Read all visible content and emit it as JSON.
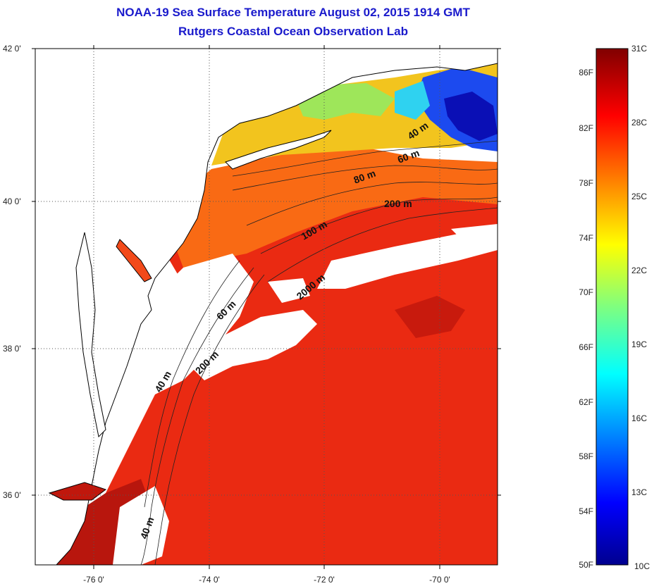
{
  "title": {
    "line1": "NOAA-19 Sea Surface Temperature August 02, 2015 1914 GMT",
    "line2": "Rutgers Coastal Ocean Observation Lab"
  },
  "map": {
    "lat_ticks": [
      "42 0'",
      "40 0'",
      "38 0'",
      "36 0'"
    ],
    "lon_ticks": [
      "-76 0'",
      "-74 0'",
      "-72 0'",
      "-70 0'"
    ],
    "depth_labels": [
      "40 m",
      "60 m",
      "80 m",
      "200 m",
      "100 m",
      "2000 m",
      "60 m",
      "200 m",
      "40 m",
      "40 m"
    ],
    "colors": {
      "land": "#ffffff",
      "coast": "#000000",
      "grid": "#555555",
      "title": "#1a1acc"
    }
  },
  "colorbar": {
    "fahrenheit": [
      "86F",
      "82F",
      "78F",
      "74F",
      "70F",
      "66F",
      "62F",
      "58F",
      "54F",
      "50F"
    ],
    "celsius": [
      "31C",
      "28C",
      "25C",
      "22C",
      "19C",
      "16C",
      "13C",
      "10C"
    ],
    "range_c": [
      10,
      31
    ]
  }
}
